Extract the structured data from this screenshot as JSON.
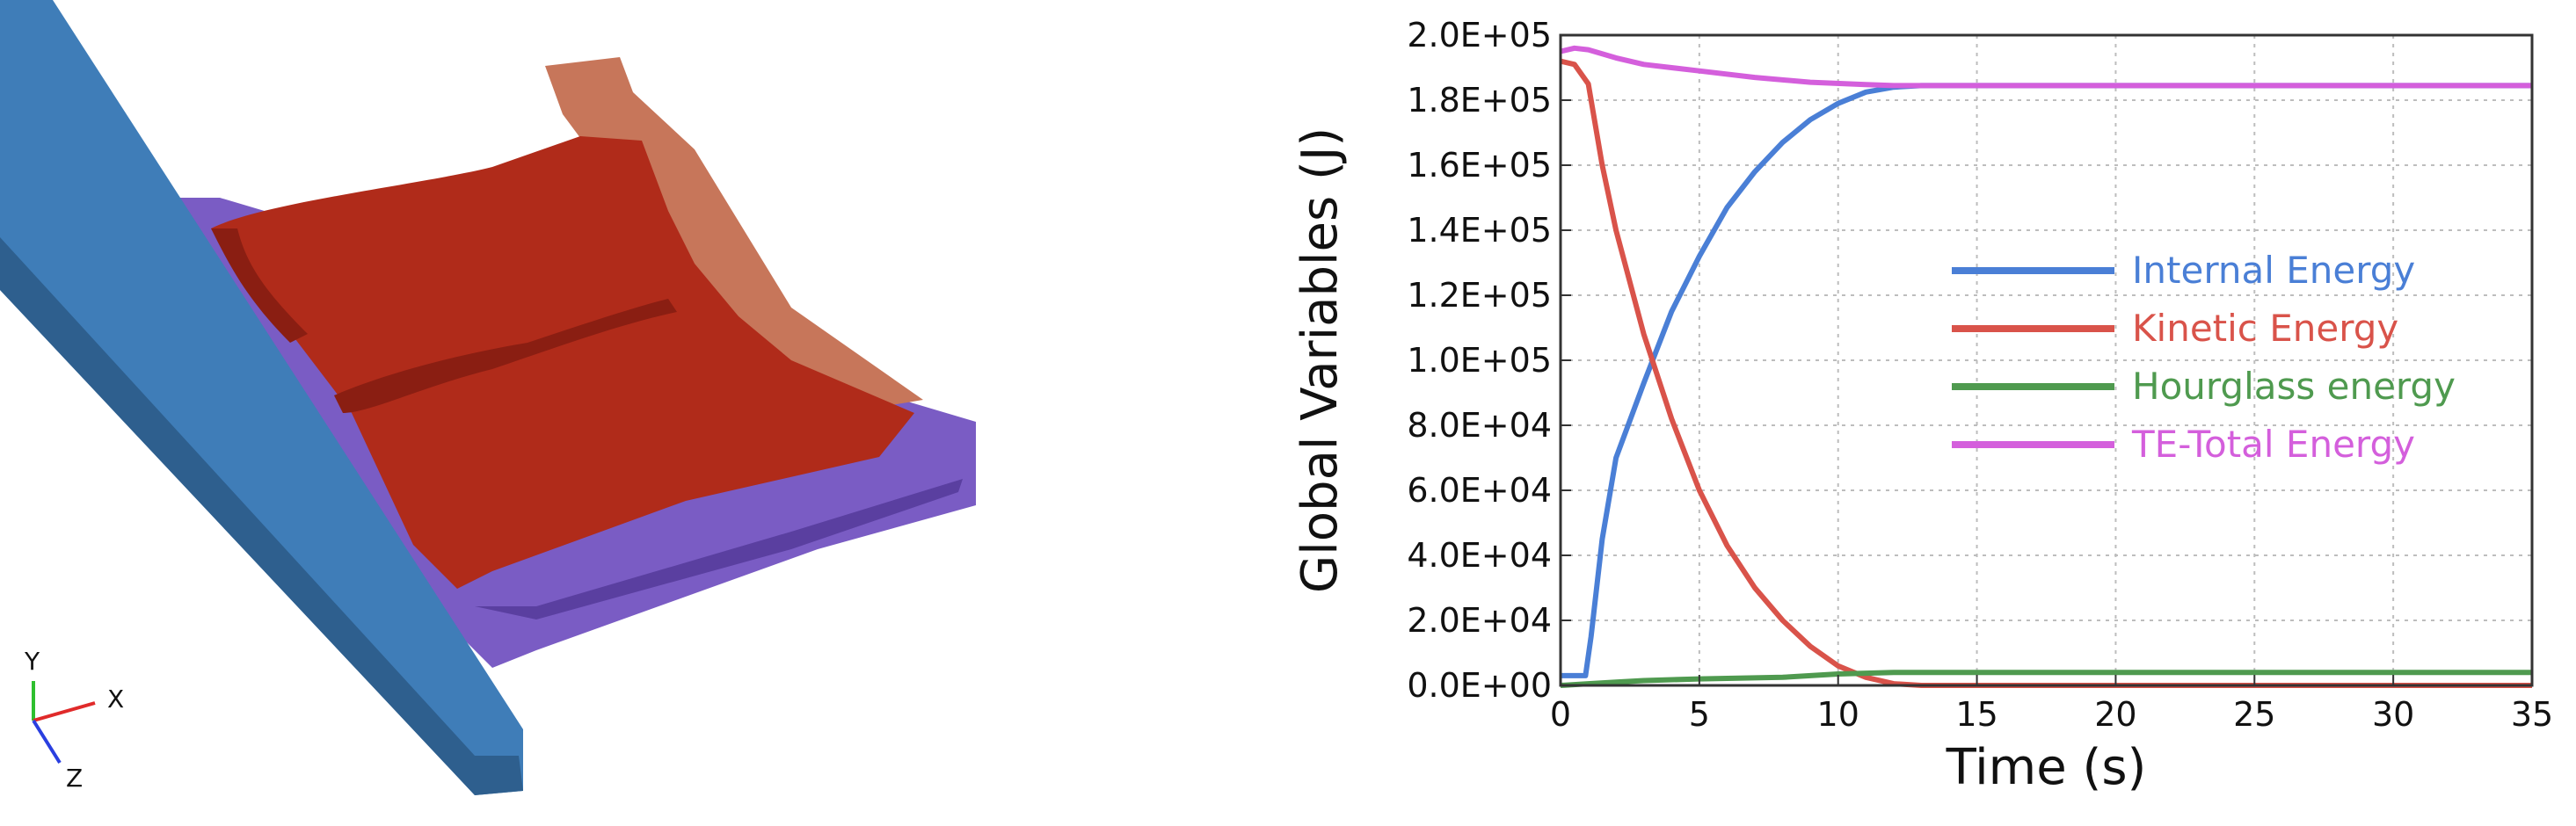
{
  "colors": {
    "beam": "#3f7db8",
    "panel": "#b02b1a",
    "rail": "#7a5cc4",
    "flange": "#c7765a",
    "triad_x": "#e02a2a",
    "triad_y": "#2fbf2f",
    "triad_z": "#2a3fe0"
  },
  "triad": {
    "x_label": "X",
    "y_label": "Y",
    "z_label": "Z"
  },
  "chart_data": {
    "type": "line",
    "xlabel": "Time (s)",
    "ylabel": "Global Variables (J)",
    "xlim": [
      0,
      35
    ],
    "ylim": [
      0,
      200000
    ],
    "xticks": [
      {
        "v": 0,
        "label": "0"
      },
      {
        "v": 5,
        "label": "5"
      },
      {
        "v": 10,
        "label": "10"
      },
      {
        "v": 15,
        "label": "15"
      },
      {
        "v": 20,
        "label": "20"
      },
      {
        "v": 25,
        "label": "25"
      },
      {
        "v": 30,
        "label": "30"
      },
      {
        "v": 35,
        "label": "35"
      }
    ],
    "yticks": [
      {
        "v": 0,
        "label": "0.0E+00"
      },
      {
        "v": 20000,
        "label": "2.0E+04"
      },
      {
        "v": 40000,
        "label": "4.0E+04"
      },
      {
        "v": 60000,
        "label": "6.0E+04"
      },
      {
        "v": 80000,
        "label": "8.0E+04"
      },
      {
        "v": 100000,
        "label": "1.0E+05"
      },
      {
        "v": 120000,
        "label": "1.2E+05"
      },
      {
        "v": 140000,
        "label": "1.4E+05"
      },
      {
        "v": 160000,
        "label": "1.6E+05"
      },
      {
        "v": 180000,
        "label": "1.8E+05"
      },
      {
        "v": 200000,
        "label": "2.0E+05"
      }
    ],
    "grid": true,
    "legend_position": "center-right",
    "series": [
      {
        "name": "Internal Energy",
        "color": "#4a7fd6",
        "x": [
          0,
          0.9,
          1.1,
          1.5,
          2,
          3,
          4,
          5,
          6,
          7,
          8,
          9,
          10,
          11,
          12,
          13,
          15,
          20,
          25,
          30,
          35
        ],
        "y": [
          3000,
          3000,
          15000,
          45000,
          70000,
          93000,
          115000,
          132000,
          147000,
          158000,
          167000,
          174000,
          179000,
          182500,
          184000,
          184500,
          184500,
          184500,
          184500,
          184500,
          184500
        ]
      },
      {
        "name": "Kinetic Energy",
        "color": "#d9534a",
        "x": [
          0,
          0.5,
          1,
          1.5,
          2,
          3,
          4,
          5,
          6,
          7,
          8,
          9,
          10,
          11,
          12,
          13,
          15,
          20,
          25,
          30,
          35
        ],
        "y": [
          192000,
          191000,
          185000,
          160000,
          140000,
          108000,
          82000,
          60000,
          43000,
          30000,
          20000,
          12000,
          6000,
          2500,
          500,
          0,
          0,
          0,
          0,
          0,
          0
        ]
      },
      {
        "name": "Hourglass energy",
        "color": "#4f9a4f",
        "x": [
          0,
          1,
          2,
          3,
          5,
          8,
          10,
          12,
          15,
          20,
          25,
          30,
          35
        ],
        "y": [
          0,
          500,
          1000,
          1500,
          2000,
          2500,
          3500,
          4000,
          4000,
          4000,
          4000,
          4000,
          4000
        ]
      },
      {
        "name": "TE-Total Energy",
        "color": "#d45fdc",
        "x": [
          0,
          0.5,
          1,
          2,
          3,
          5,
          7,
          9,
          11,
          12,
          13,
          15,
          20,
          25,
          30,
          35
        ],
        "y": [
          195000,
          196000,
          195500,
          193000,
          191000,
          189000,
          187000,
          185500,
          184800,
          184500,
          184500,
          184500,
          184500,
          184500,
          184500,
          184500
        ]
      }
    ]
  }
}
